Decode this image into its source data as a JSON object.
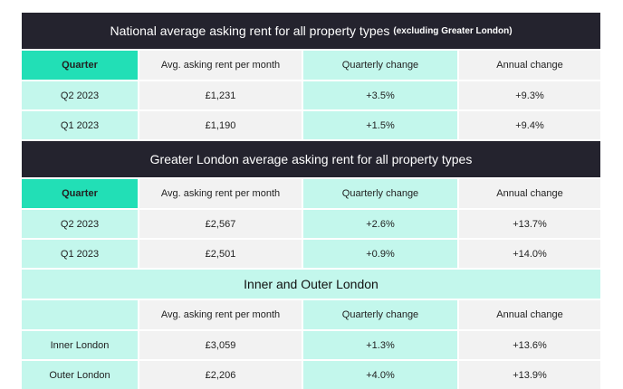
{
  "sections": [
    {
      "title": "National average asking rent for all property types",
      "title_suffix": "(excluding Greater London)",
      "headers": [
        "Quarter",
        "Avg. asking rent per month",
        "Quarterly change",
        "Annual change"
      ],
      "rows": [
        [
          "Q2 2023",
          "£1,231",
          "+3.5%",
          "+9.3%"
        ],
        [
          "Q1 2023",
          "£1,190",
          "+1.5%",
          "+9.4%"
        ]
      ]
    },
    {
      "title": "Greater London average asking rent for all property types",
      "title_suffix": "",
      "headers": [
        "Quarter",
        "Avg. asking rent per month",
        "Quarterly change",
        "Annual change"
      ],
      "rows": [
        [
          "Q2 2023",
          "£2,567",
          "+2.6%",
          "+13.7%"
        ],
        [
          "Q1 2023",
          "£2,501",
          "+0.9%",
          "+14.0%"
        ]
      ]
    },
    {
      "title": "Inner and Outer London",
      "title_suffix": "",
      "headers": [
        "",
        "Avg. asking rent per month",
        "Quarterly change",
        "Annual change"
      ],
      "rows": [
        [
          "Inner London",
          "£3,059",
          "+1.3%",
          "+13.6%"
        ],
        [
          "Outer London",
          "£2,206",
          "+4.0%",
          "+13.9%"
        ]
      ]
    }
  ],
  "colors": {
    "dark_band": "#24232e",
    "mint": "#c3f7ec",
    "teal": "#22dfb6",
    "grey": "#f2f2f2"
  }
}
